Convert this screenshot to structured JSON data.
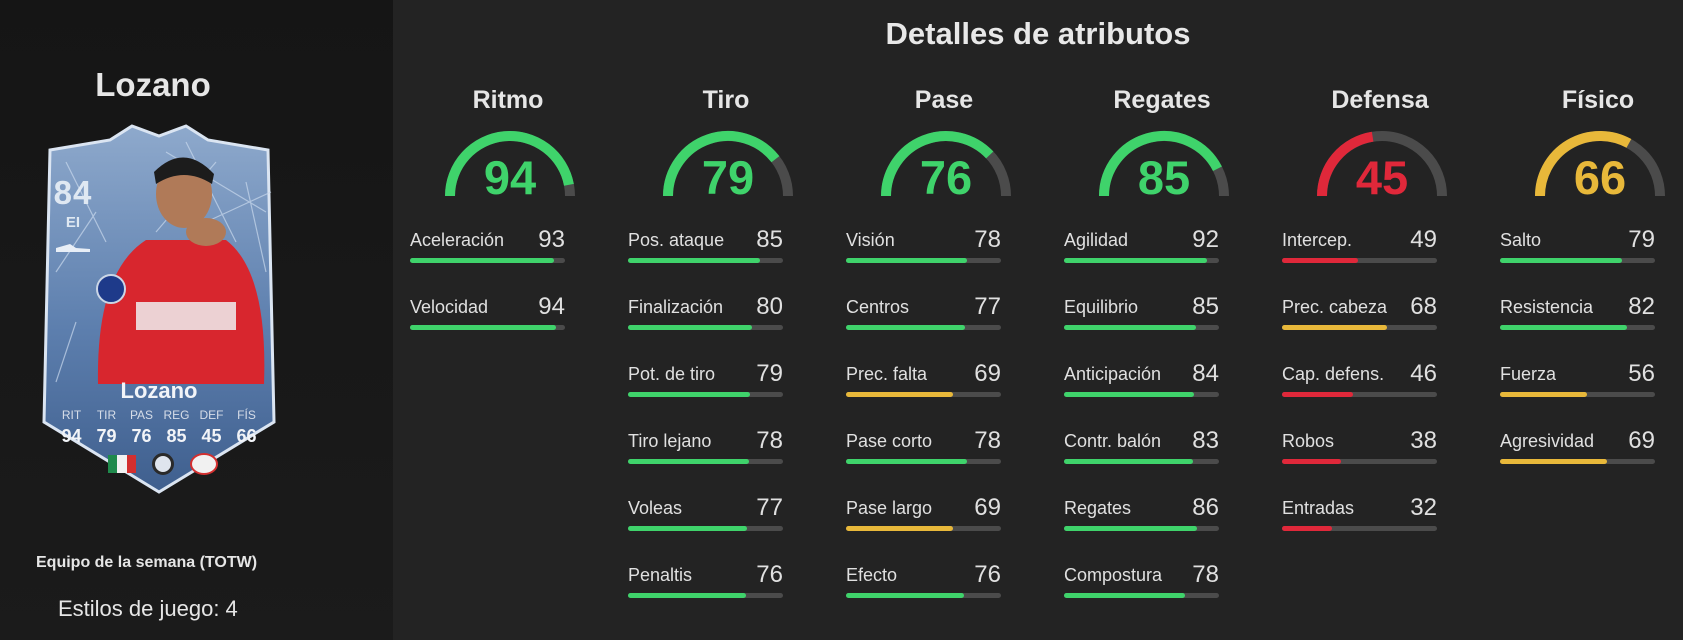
{
  "section_title": "Detalles de atributos",
  "player": {
    "name": "Lozano",
    "card_name": "Lozano",
    "rating": "84",
    "position": "EI",
    "event": "Equipo de la semana (TOTW)",
    "playstyles": "Estilos de juego: 4",
    "card_stats": [
      {
        "label": "RIT",
        "value": "94"
      },
      {
        "label": "TIR",
        "value": "79"
      },
      {
        "label": "PAS",
        "value": "76"
      },
      {
        "label": "REG",
        "value": "85"
      },
      {
        "label": "DEF",
        "value": "45"
      },
      {
        "label": "FÍS",
        "value": "66"
      }
    ]
  },
  "colors": {
    "green": "#3fd36b",
    "yellow": "#e8b83a",
    "red": "#e0283a",
    "track": "#4b4b4b",
    "card_blue": "#5d7fae"
  },
  "categories": [
    {
      "name": "Ritmo",
      "value": "94",
      "rating": 94,
      "color": "#3fd36b",
      "attributes": [
        {
          "name": "Aceleración",
          "value": "93",
          "level": 93,
          "color": "#3fd36b"
        },
        {
          "name": "Velocidad",
          "value": "94",
          "level": 94,
          "color": "#3fd36b"
        }
      ]
    },
    {
      "name": "Tiro",
      "value": "79",
      "rating": 79,
      "color": "#3fd36b",
      "attributes": [
        {
          "name": "Pos. ataque",
          "value": "85",
          "level": 85,
          "color": "#3fd36b"
        },
        {
          "name": "Finalización",
          "value": "80",
          "level": 80,
          "color": "#3fd36b"
        },
        {
          "name": "Pot. de tiro",
          "value": "79",
          "level": 79,
          "color": "#3fd36b"
        },
        {
          "name": "Tiro lejano",
          "value": "78",
          "level": 78,
          "color": "#3fd36b"
        },
        {
          "name": "Voleas",
          "value": "77",
          "level": 77,
          "color": "#3fd36b"
        },
        {
          "name": "Penaltis",
          "value": "76",
          "level": 76,
          "color": "#3fd36b"
        }
      ]
    },
    {
      "name": "Pase",
      "value": "76",
      "rating": 76,
      "color": "#3fd36b",
      "attributes": [
        {
          "name": "Visión",
          "value": "78",
          "level": 78,
          "color": "#3fd36b"
        },
        {
          "name": "Centros",
          "value": "77",
          "level": 77,
          "color": "#3fd36b"
        },
        {
          "name": "Prec. falta",
          "value": "69",
          "level": 69,
          "color": "#e8b83a"
        },
        {
          "name": "Pase corto",
          "value": "78",
          "level": 78,
          "color": "#3fd36b"
        },
        {
          "name": "Pase largo",
          "value": "69",
          "level": 69,
          "color": "#e8b83a"
        },
        {
          "name": "Efecto",
          "value": "76",
          "level": 76,
          "color": "#3fd36b"
        }
      ]
    },
    {
      "name": "Regates",
      "value": "85",
      "rating": 85,
      "color": "#3fd36b",
      "attributes": [
        {
          "name": "Agilidad",
          "value": "92",
          "level": 92,
          "color": "#3fd36b"
        },
        {
          "name": "Equilibrio",
          "value": "85",
          "level": 85,
          "color": "#3fd36b"
        },
        {
          "name": "Anticipación",
          "value": "84",
          "level": 84,
          "color": "#3fd36b"
        },
        {
          "name": "Contr. balón",
          "value": "83",
          "level": 83,
          "color": "#3fd36b"
        },
        {
          "name": "Regates",
          "value": "86",
          "level": 86,
          "color": "#3fd36b"
        },
        {
          "name": "Compostura",
          "value": "78",
          "level": 78,
          "color": "#3fd36b"
        }
      ]
    },
    {
      "name": "Defensa",
      "value": "45",
      "rating": 45,
      "color": "#e0283a",
      "attributes": [
        {
          "name": "Intercep.",
          "value": "49",
          "level": 49,
          "color": "#e0283a"
        },
        {
          "name": "Prec. cabeza",
          "value": "68",
          "level": 68,
          "color": "#e8b83a"
        },
        {
          "name": "Cap. defens.",
          "value": "46",
          "level": 46,
          "color": "#e0283a"
        },
        {
          "name": "Robos",
          "value": "38",
          "level": 38,
          "color": "#e0283a"
        },
        {
          "name": "Entradas",
          "value": "32",
          "level": 32,
          "color": "#e0283a"
        }
      ]
    },
    {
      "name": "Físico",
      "value": "66",
      "rating": 66,
      "color": "#e8b83a",
      "attributes": [
        {
          "name": "Salto",
          "value": "79",
          "level": 79,
          "color": "#3fd36b"
        },
        {
          "name": "Resistencia",
          "value": "82",
          "level": 82,
          "color": "#3fd36b"
        },
        {
          "name": "Fuerza",
          "value": "56",
          "level": 56,
          "color": "#e8b83a"
        },
        {
          "name": "Agresividad",
          "value": "69",
          "level": 69,
          "color": "#e8b83a"
        }
      ]
    }
  ]
}
